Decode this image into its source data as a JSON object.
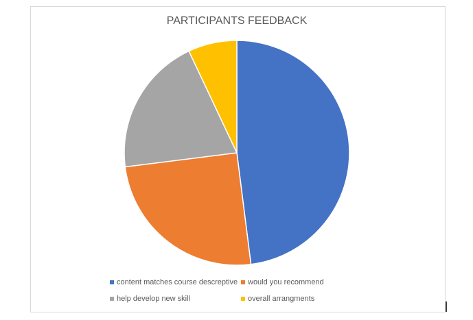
{
  "chart_data": {
    "type": "pie",
    "title": "PARTICIPANTS FEEDBACK",
    "categories": [
      "content matches course descreptive",
      "would you recommend",
      "help develop new skill",
      "overall arrangments"
    ],
    "values": [
      48,
      25,
      20,
      7
    ],
    "colors": [
      "#4472c4",
      "#ed7d31",
      "#a5a5a5",
      "#ffc000"
    ],
    "legend": "bottom"
  }
}
